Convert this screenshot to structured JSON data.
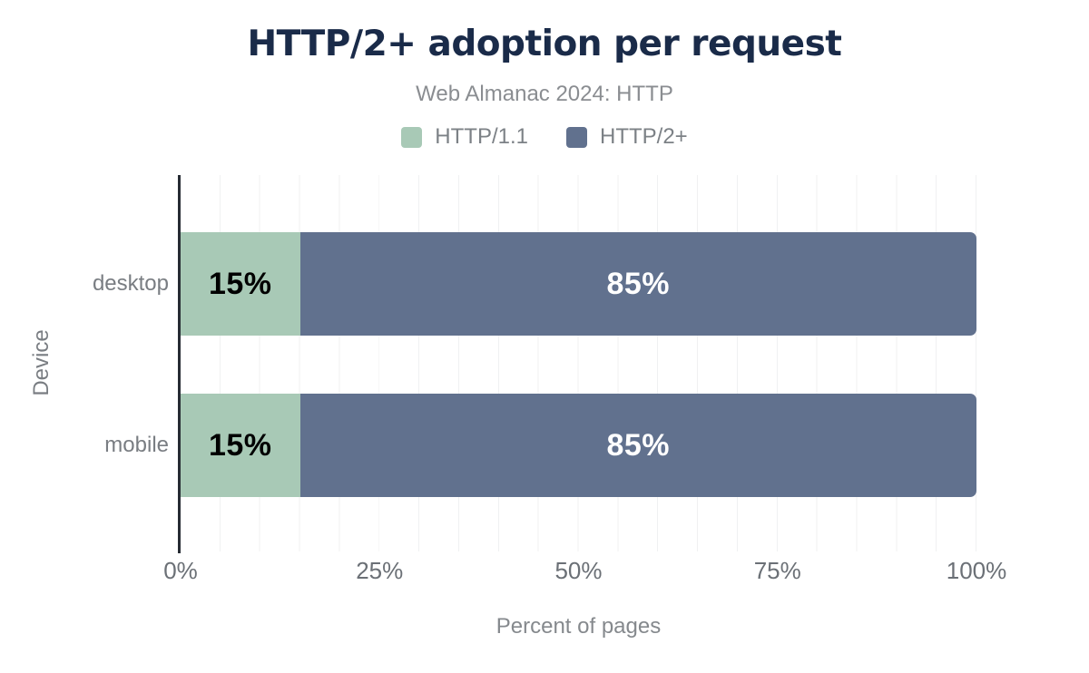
{
  "chart_data": {
    "type": "bar",
    "stacked": true,
    "orientation": "horizontal",
    "title": "HTTP/2+ adoption per request",
    "subtitle": "Web Almanac 2024: HTTP",
    "categories": [
      "desktop",
      "mobile"
    ],
    "series": [
      {
        "name": "HTTP/1.1",
        "color": "#a8c9b6",
        "values": [
          15,
          15
        ],
        "labels": [
          "15%",
          "15%"
        ]
      },
      {
        "name": "HTTP/2+",
        "color": "#61718e",
        "values": [
          85,
          85
        ],
        "labels": [
          "85%",
          "85%"
        ]
      }
    ],
    "xlabel": "Percent of pages",
    "ylabel": "Device",
    "xlim": [
      0,
      100
    ],
    "x_tick_labels": [
      "0%",
      "25%",
      "50%",
      "75%",
      "100%"
    ],
    "grid": {
      "vertical_lines_every_percent": 5,
      "color": "#f0f1f2"
    },
    "legend_position": "top",
    "colors": {
      "title_text": "#1a2b49",
      "axis_line": "#262b33",
      "axis_text": "#797d82",
      "tick_text": "#6b7076",
      "value_label_on_http11": "#000000",
      "value_label_on_http2": "#ffffff",
      "background": "#ffffff"
    }
  }
}
